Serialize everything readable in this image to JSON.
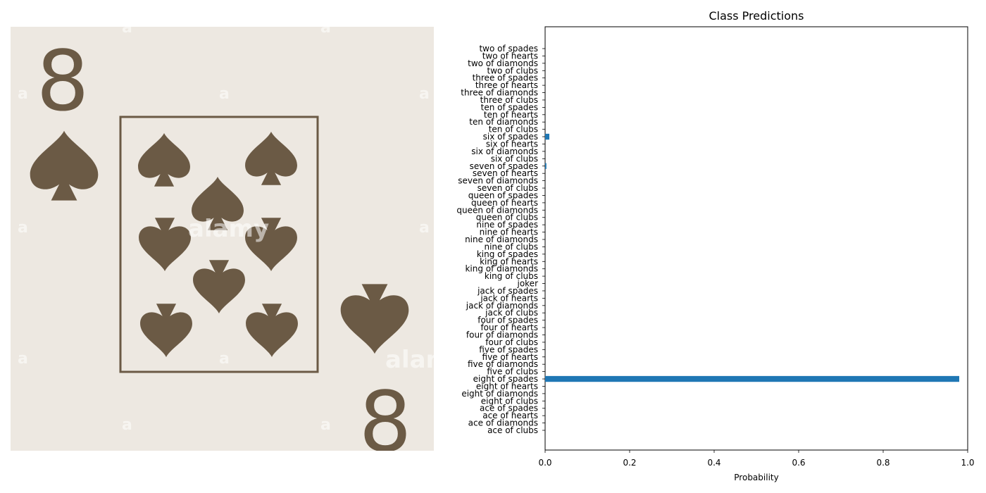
{
  "card_image": {
    "rank_glyph": "8",
    "watermark": "alamy",
    "watermark_letter": "a",
    "suit_color": "#6b5a45",
    "card_color": "#ede8e1"
  },
  "chart_data": {
    "type": "bar",
    "orientation": "horizontal",
    "title": "Class Predictions",
    "xlabel": "Probability",
    "ylabel": "",
    "xlim": [
      0,
      1.0
    ],
    "xticks": [
      "0.0",
      "0.2",
      "0.4",
      "0.6",
      "0.8",
      "1.0"
    ],
    "bar_color": "#1f77b4",
    "grid": false,
    "categories": [
      "ace of clubs",
      "ace of diamonds",
      "ace of hearts",
      "ace of spades",
      "eight of clubs",
      "eight of diamonds",
      "eight of hearts",
      "eight of spades",
      "five of clubs",
      "five of diamonds",
      "five of hearts",
      "five of spades",
      "four of clubs",
      "four of diamonds",
      "four of hearts",
      "four of spades",
      "jack of clubs",
      "jack of diamonds",
      "jack of hearts",
      "jack of spades",
      "joker",
      "king of clubs",
      "king of diamonds",
      "king of hearts",
      "king of spades",
      "nine of clubs",
      "nine of diamonds",
      "nine of hearts",
      "nine of spades",
      "queen of clubs",
      "queen of diamonds",
      "queen of hearts",
      "queen of spades",
      "seven of clubs",
      "seven of diamonds",
      "seven of hearts",
      "seven of spades",
      "six of clubs",
      "six of diamonds",
      "six of hearts",
      "six of spades",
      "ten of clubs",
      "ten of diamonds",
      "ten of hearts",
      "ten of spades",
      "three of clubs",
      "three of diamonds",
      "three of hearts",
      "three of spades",
      "two of clubs",
      "two of diamonds",
      "two of hearts",
      "two of spades"
    ],
    "values": [
      0,
      0,
      0,
      0,
      0,
      0,
      0,
      0.98,
      0,
      0,
      0,
      0,
      0,
      0,
      0,
      0,
      0,
      0,
      0,
      0,
      0,
      0,
      0,
      0,
      0,
      0,
      0,
      0,
      0,
      0,
      0,
      0,
      0,
      0,
      0,
      0,
      0.003,
      0,
      0,
      0,
      0.01,
      0,
      0,
      0,
      0,
      0,
      0,
      0,
      0,
      0,
      0,
      0,
      0
    ]
  }
}
